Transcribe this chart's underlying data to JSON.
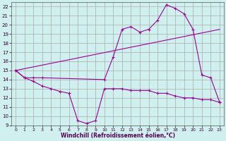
{
  "xlabel": "Windchill (Refroidissement éolien,°C)",
  "bg_color": "#cff0ee",
  "line_color": "#990099",
  "grid_color": "#aaaaaa",
  "xlim": [
    -0.5,
    23.5
  ],
  "ylim": [
    9,
    22.5
  ],
  "yticks": [
    9,
    10,
    11,
    12,
    13,
    14,
    15,
    16,
    17,
    18,
    19,
    20,
    21,
    22
  ],
  "xticks": [
    0,
    1,
    2,
    3,
    4,
    5,
    6,
    7,
    8,
    9,
    10,
    11,
    12,
    13,
    14,
    15,
    16,
    17,
    18,
    19,
    20,
    21,
    22,
    23
  ],
  "line1_x": [
    0,
    1,
    2,
    3,
    4,
    5,
    6,
    7,
    8,
    9,
    10,
    11,
    12,
    13,
    14,
    15,
    16,
    17,
    18,
    19,
    20,
    21,
    22,
    23
  ],
  "line1_y": [
    15,
    14.2,
    13.8,
    13.3,
    13.0,
    12.7,
    12.5,
    9.5,
    9.2,
    9.5,
    13.0,
    13.0,
    13.0,
    12.8,
    12.8,
    12.8,
    12.5,
    12.5,
    12.2,
    12.0,
    12.0,
    11.8,
    11.8,
    11.5
  ],
  "line2_x": [
    0,
    1,
    2,
    3,
    10,
    11,
    12,
    13,
    14,
    15,
    16,
    17,
    18,
    19,
    20,
    21,
    22,
    23
  ],
  "line2_y": [
    15,
    14.2,
    14.2,
    14.2,
    14.0,
    16.5,
    19.5,
    19.8,
    19.2,
    19.5,
    20.5,
    22.2,
    21.8,
    21.2,
    19.5,
    14.5,
    14.2,
    11.5
  ],
  "line3_x": [
    0,
    23
  ],
  "line3_y": [
    15,
    19.5
  ]
}
